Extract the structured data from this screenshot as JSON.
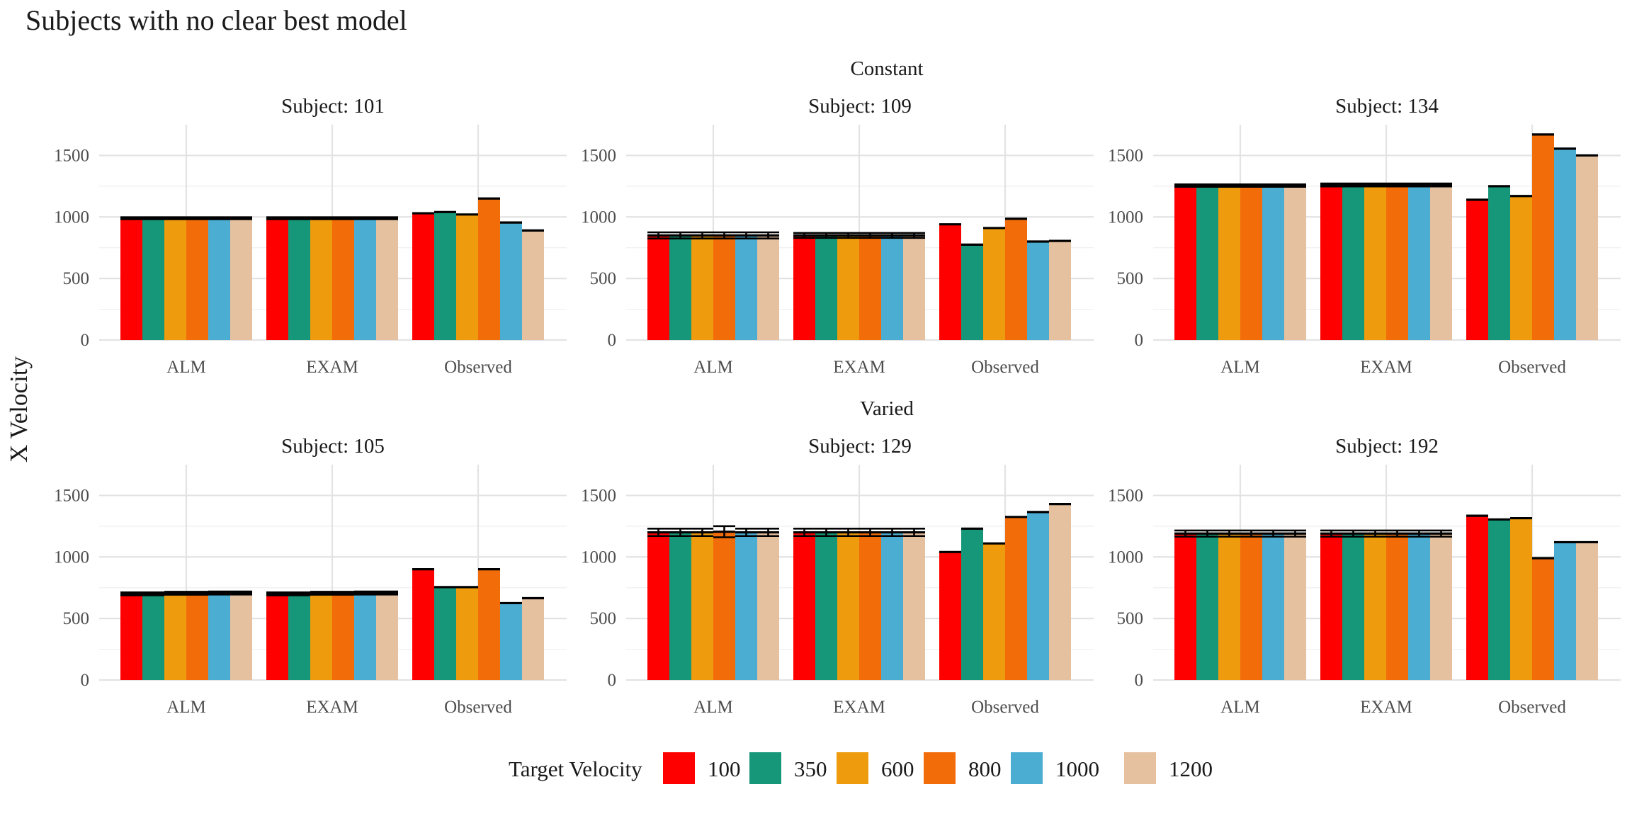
{
  "title": "Subjects with no clear best model",
  "ylabel": "X Velocity",
  "legend": {
    "title": "Target Velocity",
    "position": "bottom",
    "items": [
      {
        "label": "100",
        "color": "#FF0000"
      },
      {
        "label": "350",
        "color": "#169779"
      },
      {
        "label": "600",
        "color": "#EE9B0D"
      },
      {
        "label": "800",
        "color": "#F26C0A"
      },
      {
        "label": "1000",
        "color": "#4CADD2"
      },
      {
        "label": "1200",
        "color": "#E6C1A0"
      }
    ]
  },
  "chart_data": {
    "type": "bar",
    "layout": "faceted grid, 2 rows by 3 columns",
    "rows": [
      {
        "strip": "Constant",
        "panels": [
          {
            "title": "Subject: 101",
            "categories": [
              "ALM",
              "EXAM",
              "Observed"
            ],
            "values": [
              [
                990,
                990,
                990,
                990,
                990,
                990
              ],
              [
                990,
                990,
                990,
                990,
                990,
                990
              ],
              [
                1030,
                1040,
                1020,
                1150,
                955,
                890
              ]
            ],
            "errors": [
              [
                8,
                8,
                8,
                8,
                8,
                8
              ],
              [
                8,
                8,
                8,
                8,
                8,
                8
              ],
              [
                0,
                0,
                0,
                0,
                0,
                0
              ]
            ]
          },
          {
            "title": "Subject: 109",
            "categories": [
              "ALM",
              "EXAM",
              "Observed"
            ],
            "values": [
              [
                850,
                850,
                850,
                850,
                850,
                850
              ],
              [
                850,
                850,
                850,
                850,
                850,
                850
              ],
              [
                940,
                775,
                910,
                985,
                800,
                805
              ]
            ],
            "errors": [
              [
                25,
                25,
                25,
                25,
                25,
                25
              ],
              [
                20,
                20,
                20,
                20,
                20,
                20
              ],
              [
                0,
                0,
                0,
                0,
                0,
                0
              ]
            ]
          },
          {
            "title": "Subject: 134",
            "categories": [
              "ALM",
              "EXAM",
              "Observed"
            ],
            "values": [
              [
                1255,
                1255,
                1255,
                1255,
                1255,
                1255
              ],
              [
                1260,
                1260,
                1260,
                1260,
                1260,
                1260
              ],
              [
                1140,
                1250,
                1170,
                1670,
                1555,
                1500
              ]
            ],
            "errors": [
              [
                10,
                10,
                10,
                10,
                10,
                10
              ],
              [
                12,
                12,
                12,
                12,
                12,
                12
              ],
              [
                0,
                0,
                0,
                0,
                0,
                0
              ]
            ]
          }
        ]
      },
      {
        "strip": "Varied",
        "panels": [
          {
            "title": "Subject: 105",
            "categories": [
              "ALM",
              "EXAM",
              "Observed"
            ],
            "values": [
              [
                700,
                700,
                705,
                705,
                707,
                707
              ],
              [
                700,
                700,
                705,
                705,
                707,
                707
              ],
              [
                900,
                755,
                755,
                900,
                625,
                665
              ]
            ],
            "errors": [
              [
                12,
                12,
                12,
                12,
                12,
                12
              ],
              [
                12,
                12,
                12,
                12,
                12,
                12
              ],
              [
                0,
                0,
                0,
                0,
                0,
                0
              ]
            ]
          },
          {
            "title": "Subject: 129",
            "categories": [
              "ALM",
              "EXAM",
              "Observed"
            ],
            "values": [
              [
                1200,
                1200,
                1200,
                1205,
                1200,
                1200
              ],
              [
                1200,
                1200,
                1200,
                1200,
                1200,
                1200
              ],
              [
                1040,
                1230,
                1110,
                1325,
                1365,
                1430
              ]
            ],
            "errors": [
              [
                30,
                30,
                30,
                45,
                30,
                30
              ],
              [
                30,
                30,
                30,
                30,
                30,
                30
              ],
              [
                0,
                0,
                0,
                0,
                0,
                0
              ]
            ]
          },
          {
            "title": "Subject: 192",
            "categories": [
              "ALM",
              "EXAM",
              "Observed"
            ],
            "values": [
              [
                1190,
                1190,
                1190,
                1190,
                1190,
                1190
              ],
              [
                1190,
                1190,
                1190,
                1190,
                1190,
                1190
              ],
              [
                1335,
                1305,
                1315,
                990,
                1120,
                1120
              ]
            ],
            "errors": [
              [
                25,
                25,
                25,
                25,
                25,
                25
              ],
              [
                25,
                25,
                25,
                25,
                25,
                25
              ],
              [
                0,
                0,
                0,
                0,
                0,
                0
              ]
            ]
          }
        ]
      }
    ],
    "series": [
      "100",
      "350",
      "600",
      "800",
      "1000",
      "1200"
    ],
    "yticks": [
      "0",
      "500",
      "1000",
      "1500"
    ],
    "ylim": [
      0,
      1750
    ],
    "xlabel": "",
    "grid": true
  }
}
